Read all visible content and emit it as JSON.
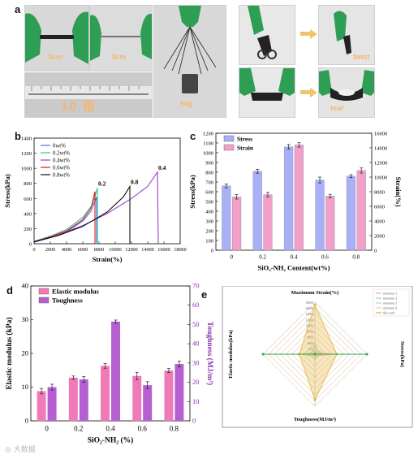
{
  "panel_labels": {
    "a": "a",
    "b": "b",
    "c": "c",
    "d": "d",
    "e": "e"
  },
  "photo_captions": {
    "p1": "3cm",
    "p2": "3cm",
    "p3": "10 倍",
    "p4": "50g",
    "p5": "twist",
    "p6": "tear"
  },
  "colors": {
    "glove_green": "#2f9e55",
    "photo_bg": "#d9d9d9",
    "stress_bar": "#aab0f5",
    "strain_bar": "#f2a0c8",
    "elastic_bar": "#f07ab8",
    "toughness_bar": "#b65fd3"
  },
  "chart_data": [
    {
      "id": "b",
      "type": "line",
      "xlabel": "Strain(%)",
      "ylabel": "Stress(kPa)",
      "xlim": [
        0,
        18000
      ],
      "ylim": [
        0,
        1400
      ],
      "xticks": [
        0,
        2000,
        4000,
        6000,
        8000,
        10000,
        12000,
        14000,
        16000,
        18000
      ],
      "yticks": [
        0,
        200,
        400,
        600,
        800,
        1000,
        1200,
        1400
      ],
      "legend_position": "top-left",
      "series": [
        {
          "name": "0wt%",
          "color": "#4a6cf5",
          "points": [
            [
              0,
              20
            ],
            [
              2000,
              80
            ],
            [
              4000,
              160
            ],
            [
              6000,
              300
            ],
            [
              7000,
              430
            ],
            [
              7500,
              560
            ],
            [
              7700,
              620
            ],
            [
              7700,
              0
            ]
          ],
          "label": ""
        },
        {
          "name": "0.2wt%",
          "color": "#2ec98a",
          "points": [
            [
              0,
              30
            ],
            [
              2000,
              100
            ],
            [
              4000,
              190
            ],
            [
              6000,
              350
            ],
            [
              7200,
              520
            ],
            [
              7800,
              740
            ],
            [
              7800,
              0
            ]
          ],
          "label": "0.2"
        },
        {
          "name": "0.4wt%",
          "color": "#9b3fc6",
          "points": [
            [
              0,
              30
            ],
            [
              3000,
              120
            ],
            [
              6000,
              240
            ],
            [
              9000,
              400
            ],
            [
              12000,
              600
            ],
            [
              14000,
              760
            ],
            [
              15200,
              950
            ],
            [
              15300,
              0
            ]
          ],
          "label": "0.4"
        },
        {
          "name": "0.6wt%",
          "color": "#d81e1e",
          "points": [
            [
              0,
              25
            ],
            [
              2000,
              90
            ],
            [
              4000,
              170
            ],
            [
              6000,
              320
            ],
            [
              7000,
              470
            ],
            [
              7500,
              690
            ],
            [
              7500,
              0
            ]
          ],
          "label": ""
        },
        {
          "name": "0.8wt%",
          "color": "#111111",
          "points": [
            [
              0,
              25
            ],
            [
              3000,
              110
            ],
            [
              6000,
              230
            ],
            [
              9000,
              420
            ],
            [
              11000,
              620
            ],
            [
              11800,
              760
            ],
            [
              11800,
              0
            ]
          ],
          "label": "0.8"
        }
      ]
    },
    {
      "id": "c",
      "type": "bar",
      "xlabel": "SiO₂-NH₂ Content(wt%)",
      "ylabel": "Stress(kPa)",
      "y2label": "Strain(%)",
      "categories": [
        "0",
        "0.2",
        "0.4",
        "0.6",
        "0.8"
      ],
      "ylim": [
        0,
        1200
      ],
      "y2lim": [
        0,
        16000
      ],
      "yticks": [
        0,
        100,
        200,
        300,
        400,
        500,
        600,
        700,
        800,
        900,
        1000,
        1100,
        1200
      ],
      "y2ticks": [
        0,
        2000,
        4000,
        6000,
        8000,
        10000,
        12000,
        14000,
        16000
      ],
      "legend_position": "top-left",
      "series": [
        {
          "name": "Stress",
          "axis": "left",
          "color": "#aab0f5",
          "values": [
            660,
            810,
            1060,
            720,
            760
          ],
          "errors": [
            20,
            20,
            25,
            30,
            15
          ]
        },
        {
          "name": "Strain",
          "axis": "right",
          "color": "#f2a0c8",
          "values": [
            7300,
            7600,
            14400,
            7400,
            10900
          ],
          "errors": [
            300,
            300,
            300,
            250,
            350
          ]
        }
      ]
    },
    {
      "id": "d",
      "type": "bar",
      "xlabel": "SiO₂-NH₂ (%)",
      "ylabel": "Elastic modulus (kPa)",
      "y2label": "Toughness (MJ/m³)",
      "categories": [
        "0",
        "0.2",
        "0.4",
        "0.6",
        "0.8"
      ],
      "ylim": [
        0,
        40
      ],
      "y2lim": [
        0,
        70
      ],
      "yticks": [
        0,
        10,
        20,
        30,
        40
      ],
      "y2ticks": [
        0,
        10,
        20,
        30,
        40,
        50,
        60,
        70
      ],
      "legend_position": "top-left",
      "series": [
        {
          "name": "Elastic modulus",
          "axis": "left",
          "color": "#f07ab8",
          "values": [
            8.8,
            12.8,
            16.3,
            13.3,
            14.9
          ],
          "errors": [
            0.8,
            0.5,
            0.7,
            1.1,
            0.6
          ]
        },
        {
          "name": "Toughness",
          "axis": "right",
          "color": "#b65fd3",
          "values": [
            17.5,
            21.5,
            51.5,
            18.5,
            29.5
          ],
          "errors": [
            1.5,
            1.5,
            0.8,
            1.8,
            1.5
          ]
        }
      ]
    },
    {
      "id": "e",
      "type": "radar",
      "axes": [
        {
          "name": "Maximum Strain(%)",
          "ticks": [
            "0",
            "2000",
            "4000",
            "6000",
            "8000",
            "10000",
            "12000",
            "14000",
            "16000",
            "18000"
          ]
        },
        {
          "name": "Stress(kPa)"
        },
        {
          "name": "Toughness(MJ/m³)"
        },
        {
          "name": "Elastic modulus(kPa)"
        }
      ],
      "legend_position": "top-right",
      "series": [
        {
          "name": "reference 1",
          "color": "#e6b8b8",
          "values": [
            0.05,
            0.25,
            0.05,
            0.15
          ]
        },
        {
          "name": "reference 2",
          "color": "#b8c8e6",
          "values": [
            0.15,
            0.12,
            0.08,
            0.08
          ]
        },
        {
          "name": "reference 3",
          "color": "#b8e6c0",
          "values": [
            0.22,
            0.08,
            0.06,
            0.22
          ]
        },
        {
          "name": "reference 4",
          "color": "#e6d8b0",
          "values": [
            0.1,
            0.2,
            0.03,
            0.06
          ]
        },
        {
          "name": "this work",
          "color": "#e7b84a",
          "values": [
            0.95,
            0.42,
            0.88,
            0.3
          ]
        }
      ],
      "green_series": {
        "name": "",
        "color": "#2ea44f",
        "values": [
          0.0,
          1.0,
          0.0,
          1.0
        ]
      }
    }
  ]
}
